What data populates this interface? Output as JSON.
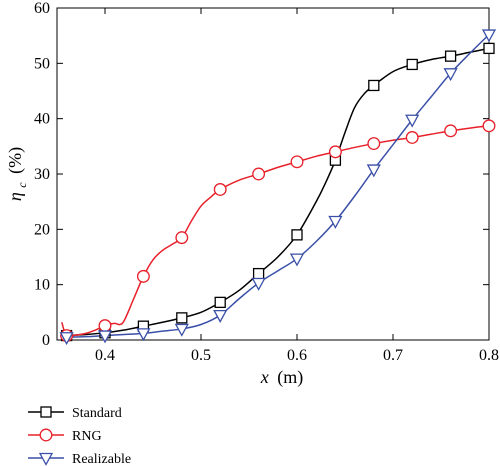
{
  "chart_data": {
    "type": "line",
    "xlabel_var": "x",
    "xlabel_unit": "(m)",
    "ylabel_var": "η",
    "ylabel_sub": "c",
    "ylabel_unit": "(%)",
    "xlim": [
      0.35,
      0.8
    ],
    "ylim": [
      0,
      60
    ],
    "xticks": [
      "0.4",
      "0.5",
      "0.6",
      "0.7",
      "0.8"
    ],
    "yticks": [
      "0",
      "10",
      "20",
      "30",
      "40",
      "50",
      "60"
    ],
    "legend_position": "below",
    "series": [
      {
        "name": "Standard",
        "color": "#000000",
        "marker": "square",
        "x": [
          0.36,
          0.4,
          0.44,
          0.48,
          0.52,
          0.56,
          0.6,
          0.64,
          0.68,
          0.72,
          0.76,
          0.8
        ],
        "y": [
          0.8,
          1.3,
          2.5,
          4.0,
          6.8,
          12.0,
          19.0,
          32.5,
          46.0,
          49.8,
          51.3,
          52.7
        ],
        "curve_x": [
          0.36,
          0.38,
          0.4,
          0.42,
          0.44,
          0.46,
          0.48,
          0.5,
          0.52,
          0.54,
          0.56,
          0.58,
          0.6,
          0.62,
          0.63,
          0.64,
          0.65,
          0.66,
          0.67,
          0.68,
          0.7,
          0.72,
          0.74,
          0.76,
          0.78,
          0.8
        ],
        "curve_y": [
          0.8,
          1.0,
          1.3,
          1.8,
          2.5,
          3.2,
          4.0,
          5.0,
          6.8,
          9.0,
          12.0,
          15.0,
          19.0,
          25.0,
          28.5,
          32.5,
          37.5,
          42.0,
          44.5,
          46.0,
          48.5,
          49.8,
          50.7,
          51.3,
          52.0,
          52.7
        ]
      },
      {
        "name": "RNG",
        "color": "#e8202a",
        "marker": "circle",
        "x": [
          0.36,
          0.4,
          0.44,
          0.48,
          0.52,
          0.56,
          0.6,
          0.64,
          0.68,
          0.72,
          0.76,
          0.8
        ],
        "y": [
          0.8,
          2.6,
          11.5,
          18.5,
          27.2,
          30.0,
          32.2,
          34.0,
          35.5,
          36.6,
          37.8,
          38.7
        ],
        "curve_x": [
          0.355,
          0.36,
          0.37,
          0.38,
          0.39,
          0.4,
          0.41,
          0.415,
          0.42,
          0.43,
          0.44,
          0.45,
          0.46,
          0.47,
          0.48,
          0.49,
          0.5,
          0.51,
          0.52,
          0.54,
          0.56,
          0.58,
          0.6,
          0.62,
          0.64,
          0.66,
          0.68,
          0.7,
          0.72,
          0.74,
          0.76,
          0.78,
          0.8
        ],
        "curve_y": [
          3.2,
          0.8,
          0.9,
          1.2,
          1.8,
          2.6,
          3.0,
          2.8,
          3.5,
          7.5,
          11.5,
          14.5,
          16.2,
          17.3,
          18.5,
          21.5,
          24.2,
          25.8,
          27.2,
          28.9,
          30.0,
          31.2,
          32.2,
          33.2,
          34.0,
          34.8,
          35.5,
          36.1,
          36.6,
          37.2,
          37.8,
          38.3,
          38.7
        ]
      },
      {
        "name": "Realizable",
        "color": "#3a4fa8",
        "marker": "triangle-down",
        "x": [
          0.36,
          0.4,
          0.44,
          0.48,
          0.52,
          0.56,
          0.6,
          0.64,
          0.68,
          0.72,
          0.76,
          0.8
        ],
        "y": [
          0.5,
          0.8,
          1.2,
          2.0,
          4.5,
          10.3,
          14.7,
          21.5,
          30.8,
          39.8,
          48.2,
          55.2
        ],
        "curve_x": [
          0.36,
          0.38,
          0.4,
          0.42,
          0.44,
          0.46,
          0.48,
          0.5,
          0.52,
          0.54,
          0.56,
          0.58,
          0.6,
          0.62,
          0.64,
          0.66,
          0.68,
          0.7,
          0.72,
          0.74,
          0.76,
          0.78,
          0.8
        ],
        "curve_y": [
          0.5,
          0.6,
          0.8,
          1.0,
          1.2,
          1.6,
          2.0,
          2.8,
          4.5,
          7.5,
          10.3,
          12.5,
          14.7,
          17.8,
          21.5,
          26.0,
          30.8,
          35.3,
          39.8,
          44.0,
          48.2,
          51.8,
          55.2
        ]
      }
    ]
  }
}
